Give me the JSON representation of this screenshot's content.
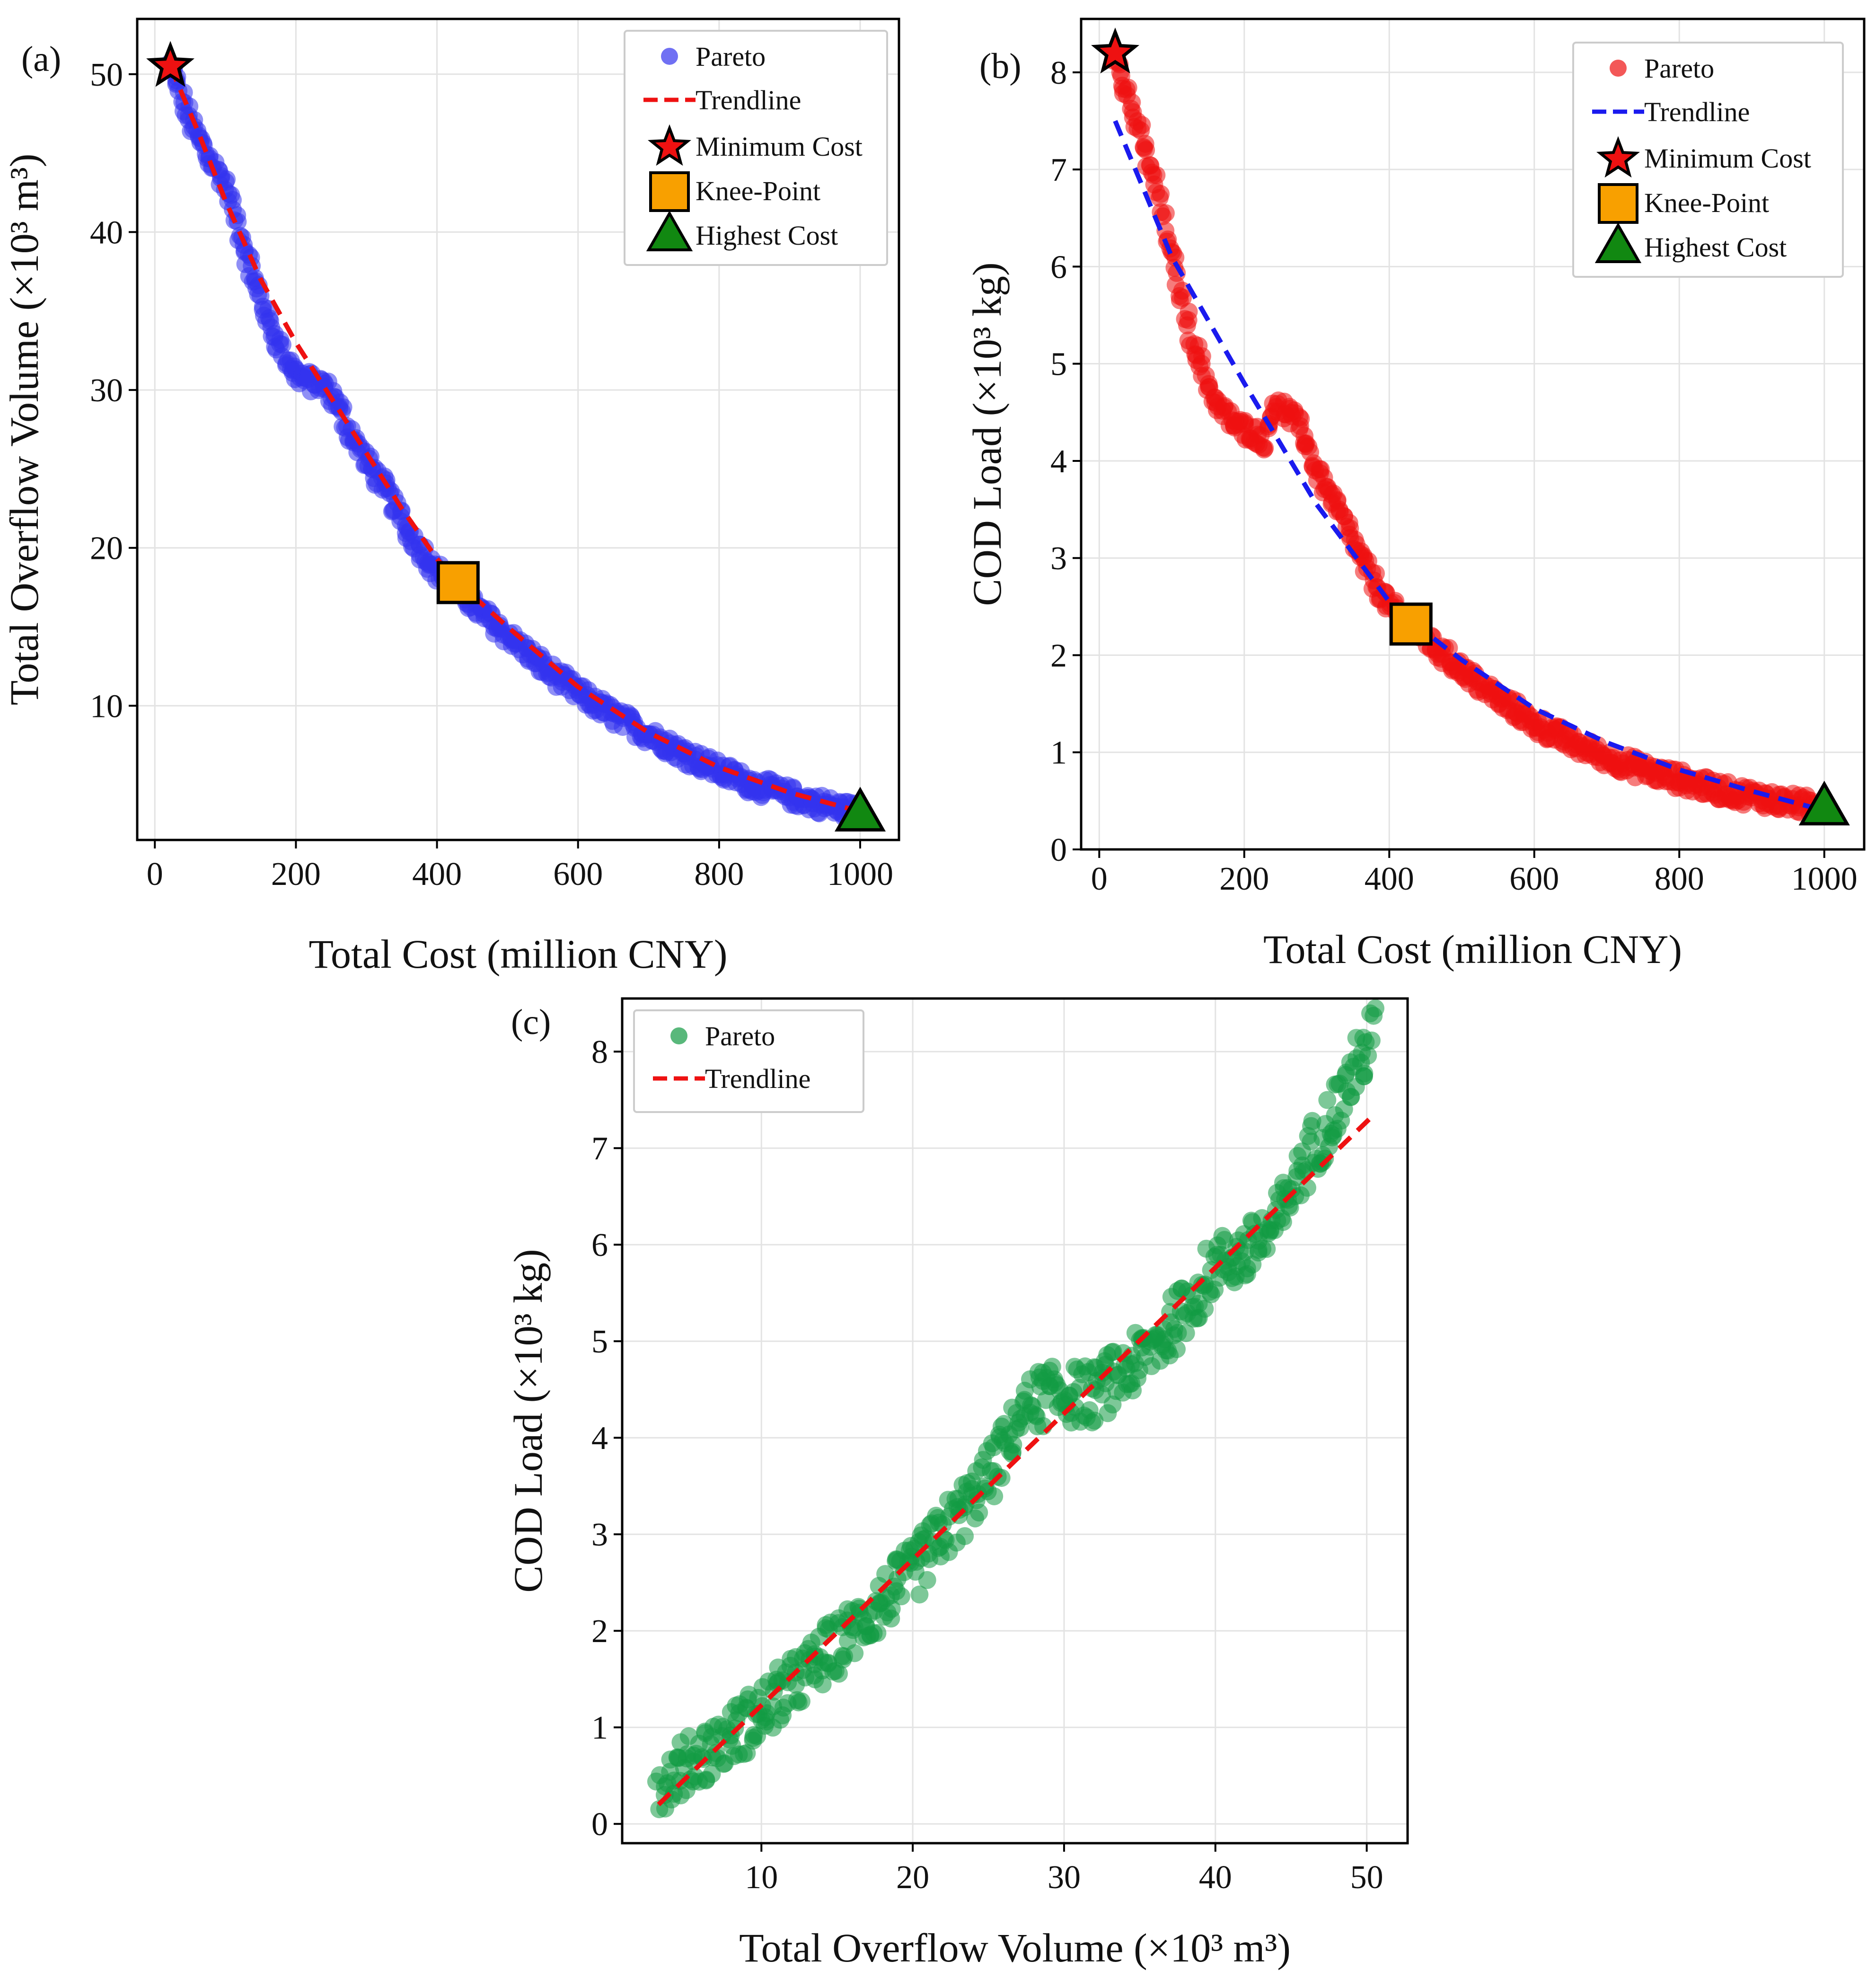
{
  "chart_data": [
    {
      "type": "scatter",
      "panel": "(a)",
      "xlabel": "Total Cost (million CNY)",
      "ylabel": "Total Overflow Volume (×10³ m³)",
      "xlim": [
        -25,
        1055
      ],
      "ylim": [
        1.5,
        53.5
      ],
      "xticks": [
        0,
        200,
        400,
        600,
        800,
        1000
      ],
      "yticks": [
        10,
        20,
        30,
        40,
        50
      ],
      "grid": true,
      "legend_position": "top-right",
      "pareto_color": "#3333ee",
      "trend_color": "#ee1111",
      "series": [
        {
          "name": "Pareto",
          "curve_x": [
            22,
            50,
            80,
            100,
            120,
            140,
            160,
            180,
            200,
            220,
            240,
            260,
            280,
            300,
            330,
            360,
            400,
            430,
            460,
            500,
            550,
            600,
            650,
            700,
            750,
            800,
            850,
            900,
            950,
            1000
          ],
          "curve_y": [
            50.5,
            47,
            44.5,
            43,
            40,
            37,
            34.5,
            32.5,
            31,
            30.5,
            30.3,
            29,
            27,
            25.5,
            23.5,
            21,
            18.5,
            17.5,
            16,
            14.5,
            12.5,
            10.8,
            9.4,
            8.2,
            7,
            5.9,
            5,
            4.3,
            3.7,
            3.2
          ]
        },
        {
          "name": "Trendline",
          "x": [
            22,
            60,
            100,
            150,
            200,
            250,
            300,
            350,
            400,
            430,
            500,
            600,
            700,
            800,
            900,
            1000
          ],
          "y": [
            50.5,
            46.5,
            42,
            37,
            33,
            29.5,
            26,
            22.5,
            19.3,
            17.8,
            15,
            11.2,
            8.3,
            6.1,
            4.5,
            3.3
          ]
        }
      ],
      "markers": [
        {
          "name": "Minimum Cost",
          "shape": "star",
          "x": 22,
          "y": 50.5,
          "color": "#ee1111"
        },
        {
          "name": "Knee-Point",
          "shape": "square",
          "x": 430,
          "y": 17.8,
          "color": "#f8a000"
        },
        {
          "name": "Highest Cost",
          "shape": "triangle",
          "x": 1000,
          "y": 3.1,
          "color": "#118811"
        }
      ]
    },
    {
      "type": "scatter",
      "panel": "(b)",
      "xlabel": "Total Cost (million CNY)",
      "ylabel": "COD Load (×10³ kg)",
      "xlim": [
        -25,
        1055
      ],
      "ylim": [
        0,
        8.55
      ],
      "xticks": [
        0,
        200,
        400,
        600,
        800,
        1000
      ],
      "yticks": [
        0,
        1,
        2,
        3,
        4,
        5,
        6,
        7,
        8
      ],
      "grid": true,
      "legend_position": "top-right",
      "pareto_color": "#ee1111",
      "trend_color": "#1a1aee",
      "series": [
        {
          "name": "Pareto",
          "curve_x": [
            22,
            50,
            80,
            100,
            130,
            160,
            190,
            210,
            230,
            240,
            260,
            280,
            300,
            330,
            360,
            400,
            430,
            460,
            500,
            550,
            600,
            650,
            700,
            750,
            800,
            850,
            900,
            950,
            1000
          ],
          "curve_y": [
            8.2,
            7.5,
            6.8,
            6.1,
            5.2,
            4.6,
            4.35,
            4.3,
            4.2,
            4.6,
            4.5,
            4.3,
            3.9,
            3.5,
            3.0,
            2.5,
            2.3,
            2.1,
            1.85,
            1.55,
            1.3,
            1.1,
            0.95,
            0.82,
            0.72,
            0.62,
            0.55,
            0.48,
            0.43
          ]
        },
        {
          "name": "Trendline",
          "x": [
            22,
            100,
            200,
            300,
            400,
            430,
            500,
            600,
            700,
            800,
            900,
            1000
          ],
          "y": [
            7.5,
            6.1,
            4.8,
            3.55,
            2.55,
            2.35,
            1.95,
            1.45,
            1.1,
            0.82,
            0.6,
            0.4
          ]
        }
      ],
      "markers": [
        {
          "name": "Minimum Cost",
          "shape": "star",
          "x": 22,
          "y": 8.2,
          "color": "#ee1111"
        },
        {
          "name": "Knee-Point",
          "shape": "square",
          "x": 430,
          "y": 2.32,
          "color": "#f8a000"
        },
        {
          "name": "Highest Cost",
          "shape": "triangle",
          "x": 1000,
          "y": 0.42,
          "color": "#118811"
        }
      ]
    },
    {
      "type": "scatter",
      "panel": "(c)",
      "xlabel": "Total Overflow Volume (×10³ m³)",
      "ylabel": "COD Load (×10³ kg)",
      "xlim": [
        0.8,
        52.7
      ],
      "ylim": [
        -0.2,
        8.55
      ],
      "xticks": [
        10,
        20,
        30,
        40,
        50
      ],
      "yticks": [
        0,
        1,
        2,
        3,
        4,
        5,
        6,
        7,
        8
      ],
      "grid": true,
      "legend_position": "top-left",
      "pareto_color": "#139a43",
      "trend_color": "#ee1111",
      "series": [
        {
          "name": "Pareto",
          "curve_x": [
            3.2,
            6,
            10,
            15,
            20,
            22,
            25,
            27,
            28,
            30,
            32,
            35,
            38,
            40,
            42,
            44,
            46,
            48,
            50.5
          ],
          "curve_y": [
            0.42,
            0.7,
            1.15,
            1.85,
            2.6,
            3.0,
            3.6,
            4.2,
            4.4,
            4.45,
            4.45,
            4.8,
            5.3,
            5.8,
            5.9,
            6.2,
            6.9,
            7.4,
            8.2
          ]
        },
        {
          "name": "Trendline",
          "x": [
            3.2,
            50.5
          ],
          "y": [
            0.2,
            7.35
          ]
        }
      ],
      "markers": []
    }
  ],
  "legend_labels": {
    "pareto": "Pareto",
    "trendline": "Trendline",
    "min_cost": "Minimum Cost",
    "knee": "Knee-Point",
    "highest": "Highest Cost"
  }
}
